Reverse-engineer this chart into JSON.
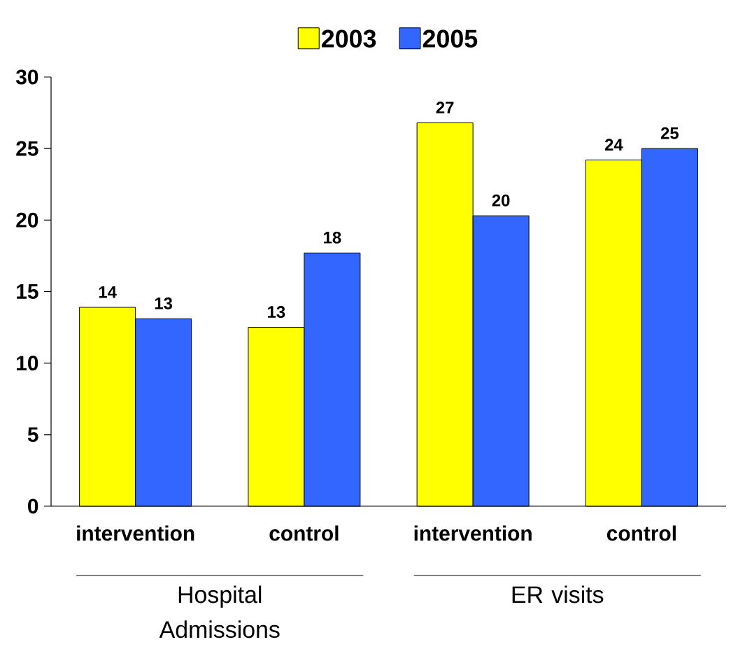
{
  "chart_data": {
    "type": "bar",
    "categories": [
      "intervention",
      "control",
      "intervention",
      "control"
    ],
    "series": [
      {
        "name": "2003",
        "color": "#ffff00",
        "values": [
          13.9,
          12.5,
          26.8,
          24.2
        ],
        "value_labels": [
          "14",
          "13",
          "27",
          "24"
        ]
      },
      {
        "name": "2005",
        "color": "#3366ff",
        "values": [
          13.1,
          17.7,
          20.3,
          25.0
        ],
        "value_labels": [
          "13",
          "18",
          "20",
          "25"
        ]
      }
    ],
    "ylim": [
      0,
      30
    ],
    "yticks": [
      0,
      5,
      10,
      15,
      20,
      25,
      30
    ],
    "legend": "top",
    "grid": false,
    "annotations": [
      "Hospital Admissions",
      "ER visits"
    ]
  }
}
